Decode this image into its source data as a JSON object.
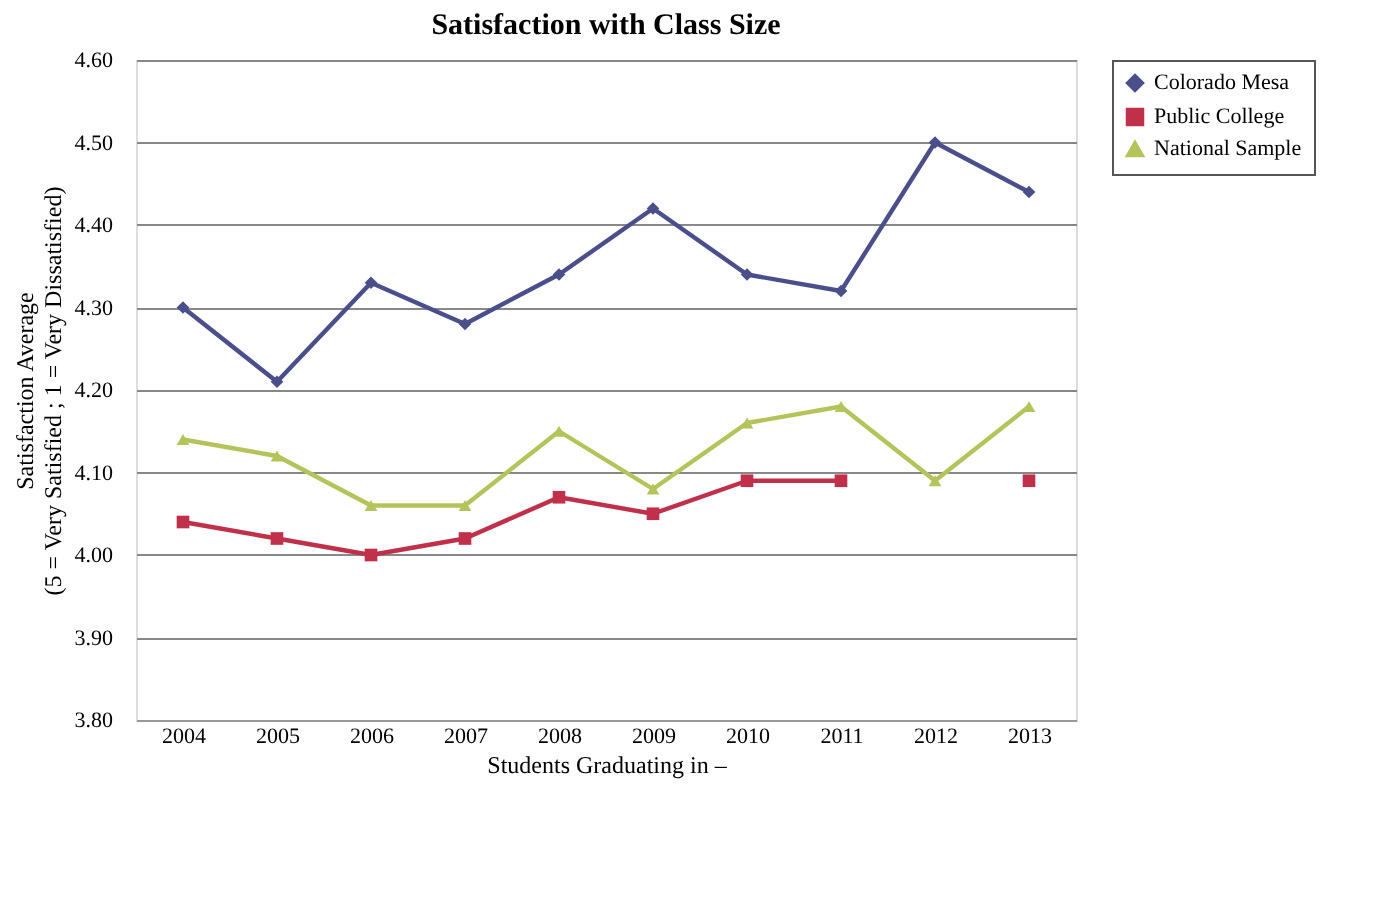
{
  "chart_data": {
    "type": "line",
    "title": "Satisfaction with Class Size",
    "xlabel": "Students Graduating in –",
    "ylabel": "Satisfaction Average\n(5 = Very Satisfied ; 1 = Very Dissatisfied)",
    "categories": [
      "2004",
      "2005",
      "2006",
      "2007",
      "2008",
      "2009",
      "2010",
      "2011",
      "2012",
      "2013"
    ],
    "series": [
      {
        "name": "Colorado Mesa",
        "color": "#4a4f8c",
        "marker": "diamond",
        "values": [
          4.3,
          4.21,
          4.33,
          4.28,
          4.34,
          4.42,
          4.34,
          4.32,
          4.5,
          4.44
        ]
      },
      {
        "name": "Public College",
        "color": "#c0304a",
        "marker": "square",
        "values": [
          4.04,
          4.02,
          4.0,
          4.02,
          4.07,
          4.05,
          4.09,
          4.09,
          null,
          4.09
        ]
      },
      {
        "name": "National Sample",
        "color": "#b5c45a",
        "marker": "triangle",
        "values": [
          4.14,
          4.12,
          4.06,
          4.06,
          4.15,
          4.08,
          4.16,
          4.18,
          4.09,
          4.18
        ]
      }
    ],
    "ylim": [
      3.8,
      4.6
    ],
    "yticks": [
      {
        "value": 3.8,
        "label": "3.80"
      },
      {
        "value": 3.9,
        "label": "3.90"
      },
      {
        "value": 4.0,
        "label": "4.00"
      },
      {
        "value": 4.1,
        "label": "4.10"
      },
      {
        "value": 4.2,
        "label": "4.20"
      },
      {
        "value": 4.3,
        "label": "4.30"
      },
      {
        "value": 4.4,
        "label": "4.40"
      },
      {
        "value": 4.5,
        "label": "4.50"
      },
      {
        "value": 4.6,
        "label": "4.60"
      }
    ],
    "grid": "y",
    "legend": "right",
    "line_style": "solid"
  }
}
